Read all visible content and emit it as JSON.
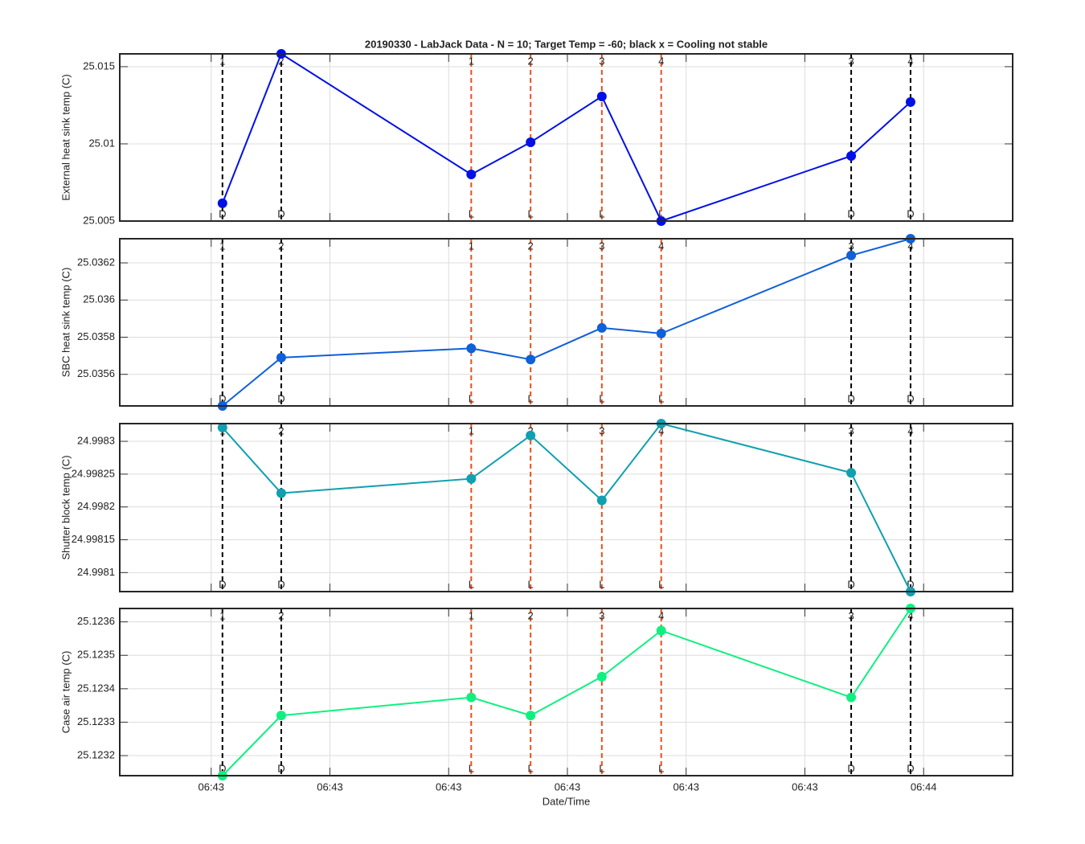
{
  "chart_data": [
    {
      "type": "line",
      "title": "20190330 - LabJack Data - N = 10; Target Temp = -60; black x = Cooling not stable",
      "ylabel": "External heat sink temp (C)",
      "color": "#0010e6",
      "grid": true,
      "x": [
        0.095,
        0.59,
        2.19,
        2.69,
        3.29,
        3.79,
        5.39,
        5.89
      ],
      "values": [
        25.00615,
        25.01583,
        25.00802,
        25.0101,
        25.01307,
        25.005,
        25.00922,
        25.01271
      ],
      "xlim": [
        -0.77,
        6.75
      ],
      "xticks": [
        {
          "value": 0,
          "label": "06:43"
        },
        {
          "value": 1,
          "label": "06:43"
        },
        {
          "value": 2,
          "label": "06:43"
        },
        {
          "value": 3,
          "label": "06:43"
        },
        {
          "value": 4,
          "label": "06:43"
        },
        {
          "value": 5,
          "label": "06:43"
        },
        {
          "value": 6,
          "label": "06:44"
        }
      ],
      "ylim": [
        25.005,
        25.01583
      ],
      "yticks": [
        25.005,
        25.01,
        25.015
      ],
      "markers": [
        {
          "x": 0.095,
          "top": "1",
          "bottom": "D",
          "color": "#000000"
        },
        {
          "x": 0.59,
          "top": "2",
          "bottom": "D",
          "color": "#000000"
        },
        {
          "x": 2.19,
          "top": "1",
          "bottom": "L",
          "color": "#e8501a"
        },
        {
          "x": 2.69,
          "top": "2",
          "bottom": "L",
          "color": "#e8501a"
        },
        {
          "x": 3.29,
          "top": "3",
          "bottom": "L",
          "color": "#e8501a"
        },
        {
          "x": 3.79,
          "top": "4",
          "bottom": "L",
          "color": "#e8501a"
        },
        {
          "x": 5.39,
          "top": "3",
          "bottom": "D",
          "color": "#000000"
        },
        {
          "x": 5.89,
          "top": "4",
          "bottom": "D",
          "color": "#000000"
        }
      ]
    },
    {
      "type": "line",
      "ylabel": "SBC heat sink temp (C)",
      "color": "#1060d8",
      "grid": true,
      "x": [
        0.095,
        0.59,
        2.19,
        2.69,
        3.29,
        3.79,
        5.39,
        5.89
      ],
      "values": [
        25.03543,
        25.03569,
        25.03574,
        25.03568,
        25.03585,
        25.03582,
        25.03624,
        25.03633
      ],
      "xlim": [
        -0.77,
        6.75
      ],
      "xticks": [
        {
          "value": 0,
          "label": "06:43"
        },
        {
          "value": 1,
          "label": "06:43"
        },
        {
          "value": 2,
          "label": "06:43"
        },
        {
          "value": 3,
          "label": "06:43"
        },
        {
          "value": 4,
          "label": "06:43"
        },
        {
          "value": 5,
          "label": "06:43"
        },
        {
          "value": 6,
          "label": "06:44"
        }
      ],
      "ylim": [
        25.03543,
        25.03633
      ],
      "yticks": [
        25.0356,
        25.0358,
        25.036,
        25.0362
      ],
      "markers": [
        {
          "x": 0.095,
          "top": "1",
          "bottom": "D",
          "color": "#000000"
        },
        {
          "x": 0.59,
          "top": "2",
          "bottom": "D",
          "color": "#000000"
        },
        {
          "x": 2.19,
          "top": "1",
          "bottom": "L",
          "color": "#e8501a"
        },
        {
          "x": 2.69,
          "top": "2",
          "bottom": "L",
          "color": "#e8501a"
        },
        {
          "x": 3.29,
          "top": "3",
          "bottom": "L",
          "color": "#e8501a"
        },
        {
          "x": 3.79,
          "top": "4",
          "bottom": "L",
          "color": "#e8501a"
        },
        {
          "x": 5.39,
          "top": "3",
          "bottom": "D",
          "color": "#000000"
        },
        {
          "x": 5.89,
          "top": "4",
          "bottom": "D",
          "color": "#000000"
        }
      ]
    },
    {
      "type": "line",
      "ylabel": "Shutter block temp (C)",
      "color": "#10a0b0",
      "grid": true,
      "x": [
        0.095,
        0.59,
        2.19,
        2.69,
        3.29,
        3.79,
        5.39,
        5.89
      ],
      "values": [
        24.998321,
        24.998221,
        24.998243,
        24.998309,
        24.99821,
        24.998327,
        24.998252,
        24.998071
      ],
      "xlim": [
        -0.77,
        6.75
      ],
      "xticks": [
        {
          "value": 0,
          "label": "06:43"
        },
        {
          "value": 1,
          "label": "06:43"
        },
        {
          "value": 2,
          "label": "06:43"
        },
        {
          "value": 3,
          "label": "06:43"
        },
        {
          "value": 4,
          "label": "06:43"
        },
        {
          "value": 5,
          "label": "06:43"
        },
        {
          "value": 6,
          "label": "06:44"
        }
      ],
      "ylim": [
        24.998071,
        24.998327
      ],
      "yticks": [
        24.9981,
        24.99815,
        24.9982,
        24.99825,
        24.9983
      ],
      "markers": [
        {
          "x": 0.095,
          "top": "1",
          "bottom": "D",
          "color": "#000000"
        },
        {
          "x": 0.59,
          "top": "2",
          "bottom": "D",
          "color": "#000000"
        },
        {
          "x": 2.19,
          "top": "1",
          "bottom": "L",
          "color": "#e8501a"
        },
        {
          "x": 2.69,
          "top": "2",
          "bottom": "L",
          "color": "#e8501a"
        },
        {
          "x": 3.29,
          "top": "3",
          "bottom": "L",
          "color": "#e8501a"
        },
        {
          "x": 3.79,
          "top": "4",
          "bottom": "L",
          "color": "#e8501a"
        },
        {
          "x": 5.39,
          "top": "3",
          "bottom": "D",
          "color": "#000000"
        },
        {
          "x": 5.89,
          "top": "4",
          "bottom": "D",
          "color": "#000000"
        }
      ]
    },
    {
      "type": "line",
      "ylabel": "Case air temp (C)",
      "xlabel": "Date/Time",
      "color": "#10f080",
      "grid": true,
      "x": [
        0.095,
        0.59,
        2.19,
        2.69,
        3.29,
        3.79,
        5.39,
        5.89
      ],
      "values": [
        25.12314,
        25.12332,
        25.123374,
        25.12332,
        25.123436,
        25.123574,
        25.123374,
        25.12364
      ],
      "xlim": [
        -0.77,
        6.75
      ],
      "xticks": [
        {
          "value": 0,
          "label": "06:43"
        },
        {
          "value": 1,
          "label": "06:43"
        },
        {
          "value": 2,
          "label": "06:43"
        },
        {
          "value": 3,
          "label": "06:43"
        },
        {
          "value": 4,
          "label": "06:43"
        },
        {
          "value": 5,
          "label": "06:43"
        },
        {
          "value": 6,
          "label": "06:44"
        }
      ],
      "ylim": [
        25.12314,
        25.12364
      ],
      "yticks": [
        25.1232,
        25.1233,
        25.1234,
        25.1235,
        25.1236
      ],
      "markers": [
        {
          "x": 0.095,
          "top": "1",
          "bottom": "D",
          "color": "#000000"
        },
        {
          "x": 0.59,
          "top": "2",
          "bottom": "D",
          "color": "#000000"
        },
        {
          "x": 2.19,
          "top": "1",
          "bottom": "L",
          "color": "#e8501a"
        },
        {
          "x": 2.69,
          "top": "2",
          "bottom": "L",
          "color": "#e8501a"
        },
        {
          "x": 3.29,
          "top": "3",
          "bottom": "L",
          "color": "#e8501a"
        },
        {
          "x": 3.79,
          "top": "4",
          "bottom": "L",
          "color": "#e8501a"
        },
        {
          "x": 5.39,
          "top": "3",
          "bottom": "D",
          "color": "#000000"
        },
        {
          "x": 5.89,
          "top": "4",
          "bottom": "D",
          "color": "#000000"
        }
      ]
    }
  ]
}
